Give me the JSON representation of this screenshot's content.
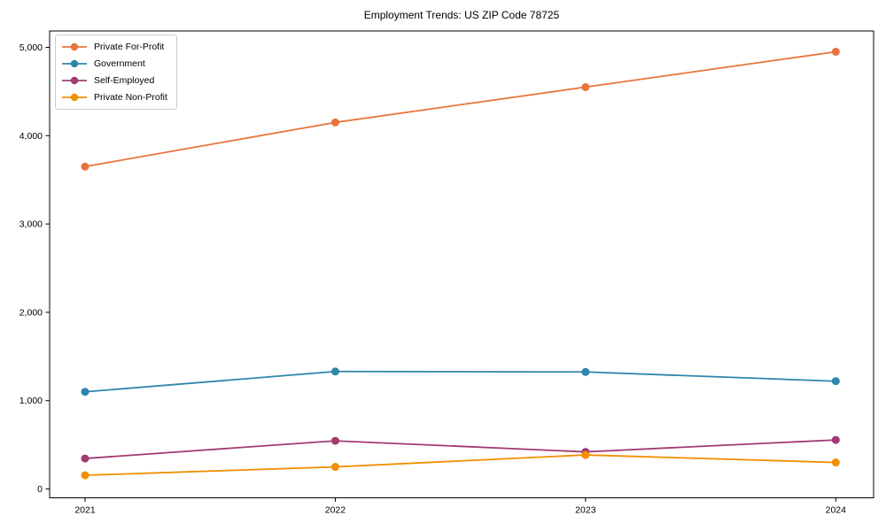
{
  "title": "Employment Trends: US ZIP Code 78725",
  "chart_data": {
    "type": "line",
    "title": "Employment Trends: US ZIP Code 78725",
    "categories": [
      "2021",
      "2022",
      "2023",
      "2024"
    ],
    "series": [
      {
        "name": "Private For-Profit",
        "color": "#E8743B",
        "values": [
          3650,
          4150,
          4550,
          4950
        ]
      },
      {
        "name": "Government",
        "color": "#2E86AB",
        "values": [
          1100,
          1330,
          1325,
          1220
        ]
      },
      {
        "name": "Self-Employed",
        "color": "#A23B72",
        "values": [
          345,
          545,
          420,
          555
        ]
      },
      {
        "name": "Private Non-Profit",
        "color": "#F18F01",
        "values": [
          155,
          250,
          385,
          300
        ]
      }
    ],
    "xlabel": "",
    "ylabel": "",
    "ylim": [
      0,
      5000
    ],
    "yticks": [
      0,
      1000,
      2000,
      3000,
      4000,
      5000
    ],
    "ytick_labels": [
      "0",
      "1,000",
      "2,000",
      "3,000",
      "4,000",
      "5,000"
    ],
    "grid": false,
    "legend_position": "upper left",
    "marker": "circle",
    "axis_color": "#000000",
    "background_color": "#ffffff"
  }
}
